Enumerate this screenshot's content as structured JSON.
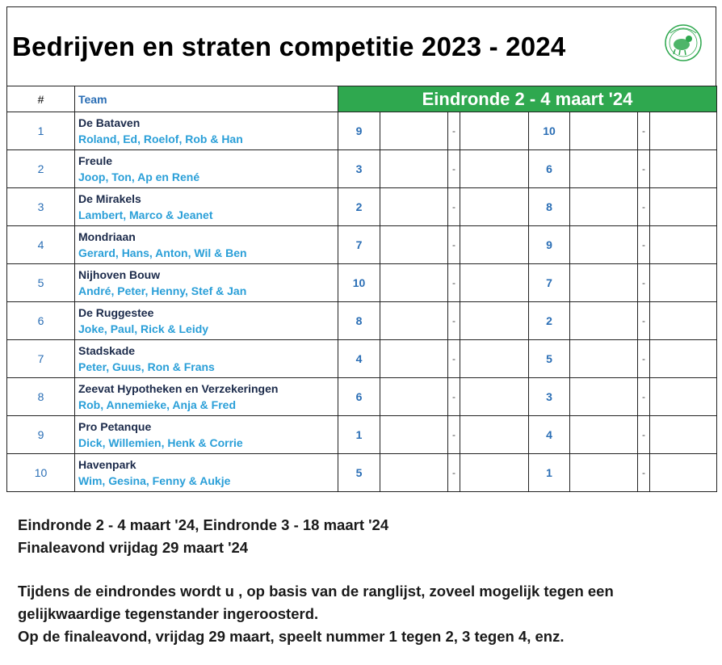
{
  "title": "Bedrijven en straten competitie 2023 - 2024",
  "logo": {
    "icon": "club-logo-icon",
    "color": "#2fa84f"
  },
  "header": {
    "num_label": "#",
    "team_label": "Team",
    "round_label": "Eindronde 2 - 4 maart '24"
  },
  "colors": {
    "round_header_bg": "#2fa84f",
    "team_label": "#2a6eb5",
    "members": "#2a9fd8"
  },
  "rows": [
    {
      "num": "1",
      "team": "De Bataven",
      "members": "Roland, Ed, Roelof, Rob & Han",
      "score1": "9",
      "dash1": "-",
      "score2": "10",
      "dash2": "-"
    },
    {
      "num": "2",
      "team": "Freule",
      "members": "Joop, Ton, Ap en René",
      "score1": "3",
      "dash1": "-",
      "score2": "6",
      "dash2": "-"
    },
    {
      "num": "3",
      "team": "De Mirakels",
      "members": "Lambert, Marco & Jeanet",
      "score1": "2",
      "dash1": "-",
      "score2": "8",
      "dash2": "-"
    },
    {
      "num": "4",
      "team": "Mondriaan",
      "members": "Gerard, Hans, Anton, Wil & Ben",
      "score1": "7",
      "dash1": "-",
      "score2": "9",
      "dash2": "-"
    },
    {
      "num": "5",
      "team": "Nijhoven Bouw",
      "members": "André, Peter, Henny, Stef & Jan",
      "score1": "10",
      "dash1": "-",
      "score2": "7",
      "dash2": "-"
    },
    {
      "num": "6",
      "team": "De Ruggestee",
      "members": "Joke, Paul, Rick & Leidy",
      "score1": "8",
      "dash1": "-",
      "score2": "2",
      "dash2": "-"
    },
    {
      "num": "7",
      "team": "Stadskade",
      "members": "Peter, Guus, Ron & Frans",
      "score1": "4",
      "dash1": "-",
      "score2": "5",
      "dash2": "-"
    },
    {
      "num": "8",
      "team": "Zeevat Hypotheken en Verzekeringen",
      "members": "Rob, Annemieke, Anja & Fred",
      "score1": "6",
      "dash1": "-",
      "score2": "3",
      "dash2": "-"
    },
    {
      "num": "9",
      "team": "Pro Petanque",
      "members": "Dick, Willemien, Henk & Corrie",
      "score1": "1",
      "dash1": "-",
      "score2": "4",
      "dash2": "-"
    },
    {
      "num": "10",
      "team": "Havenpark",
      "members": "Wim, Gesina, Fenny & Aukje",
      "score1": "5",
      "dash1": "-",
      "score2": "1",
      "dash2": "-"
    }
  ],
  "notes": {
    "line1": "Eindronde 2 - 4 maart '24, Eindronde 3 - 18 maart '24",
    "line2": "Finaleavond vrijdag 29 maart '24",
    "line3": "Tijdens de eindrondes wordt u , op basis van de ranglijst, zoveel mogelijk tegen een",
    "line4": "gelijkwaardige tegenstander ingeroosterd.",
    "line5": "Op de finaleavond, vrijdag 29 maart, speelt nummer 1 tegen 2, 3 tegen 4, enz."
  }
}
